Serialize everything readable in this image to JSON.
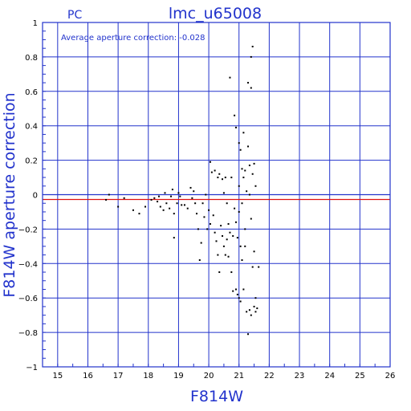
{
  "colors": {
    "frame": "#2233cc",
    "zero_line": "#2233cc",
    "mean_line": "#dd1111",
    "points": "#000000",
    "background": "#ffffff"
  },
  "chart_data": {
    "type": "scatter",
    "corner_label": "PC",
    "title": "lmc_u65008",
    "annotation": "Average aperture correction: -0.028",
    "xlabel": "F814W",
    "ylabel": "F814W aperture correction",
    "xlim": [
      14.5,
      26
    ],
    "ylim": [
      -1,
      1
    ],
    "xticks": [
      "15",
      "16",
      "17",
      "18",
      "19",
      "20",
      "21",
      "22",
      "23",
      "24",
      "25",
      "26"
    ],
    "yticks": [
      "1",
      "0.8",
      "0.6",
      "0.4",
      "0.2",
      "0",
      "−0.2",
      "−0.4",
      "−0.6",
      "−0.8",
      "−1"
    ],
    "grid": true,
    "reference_lines": [
      {
        "y": 0,
        "color": "#2233cc"
      },
      {
        "y": -0.028,
        "color": "#dd1111"
      }
    ],
    "points": [
      [
        16.6,
        -0.03
      ],
      [
        16.7,
        0.0
      ],
      [
        17.0,
        -0.07
      ],
      [
        17.2,
        -0.02
      ],
      [
        17.5,
        -0.09
      ],
      [
        17.7,
        -0.11
      ],
      [
        17.9,
        -0.07
      ],
      [
        18.1,
        -0.03
      ],
      [
        18.2,
        -0.02
      ],
      [
        18.3,
        -0.04
      ],
      [
        18.35,
        -0.01
      ],
      [
        18.4,
        -0.07
      ],
      [
        18.5,
        -0.09
      ],
      [
        18.55,
        0.01
      ],
      [
        18.6,
        -0.05
      ],
      [
        18.7,
        -0.08
      ],
      [
        18.75,
        -0.01
      ],
      [
        18.8,
        0.03
      ],
      [
        18.85,
        -0.11
      ],
      [
        18.85,
        -0.25
      ],
      [
        18.95,
        -0.05
      ],
      [
        19.0,
        0.01
      ],
      [
        19.05,
        -0.01
      ],
      [
        19.1,
        -0.06
      ],
      [
        19.2,
        -0.06
      ],
      [
        19.3,
        -0.08
      ],
      [
        19.4,
        0.04
      ],
      [
        19.45,
        -0.02
      ],
      [
        19.5,
        0.02
      ],
      [
        19.55,
        -0.05
      ],
      [
        19.6,
        -0.11
      ],
      [
        19.65,
        -0.2
      ],
      [
        19.7,
        -0.38
      ],
      [
        19.75,
        -0.28
      ],
      [
        19.8,
        -0.05
      ],
      [
        19.85,
        -0.13
      ],
      [
        19.9,
        0.0
      ],
      [
        19.95,
        -0.2
      ],
      [
        20.0,
        -0.09
      ],
      [
        20.05,
        -0.17
      ],
      [
        20.05,
        0.19
      ],
      [
        20.1,
        0.13
      ],
      [
        20.15,
        -0.12
      ],
      [
        20.2,
        -0.22
      ],
      [
        20.2,
        0.14
      ],
      [
        20.25,
        -0.27
      ],
      [
        20.3,
        -0.35
      ],
      [
        20.3,
        0.1
      ],
      [
        20.35,
        0.12
      ],
      [
        20.35,
        -0.45
      ],
      [
        20.4,
        -0.18
      ],
      [
        20.45,
        -0.24
      ],
      [
        20.45,
        0.09
      ],
      [
        20.5,
        0.01
      ],
      [
        20.5,
        -0.3
      ],
      [
        20.55,
        -0.35
      ],
      [
        20.55,
        0.1
      ],
      [
        20.6,
        -0.26
      ],
      [
        20.6,
        -0.05
      ],
      [
        20.65,
        -0.36
      ],
      [
        20.65,
        -0.17
      ],
      [
        20.7,
        0.68
      ],
      [
        20.7,
        -0.22
      ],
      [
        20.75,
        -0.45
      ],
      [
        20.75,
        0.1
      ],
      [
        20.8,
        -0.24
      ],
      [
        20.8,
        -0.56
      ],
      [
        20.85,
        0.46
      ],
      [
        20.85,
        -0.08
      ],
      [
        20.9,
        -0.55
      ],
      [
        20.9,
        -0.16
      ],
      [
        20.9,
        0.39
      ],
      [
        20.95,
        -0.25
      ],
      [
        20.95,
        -0.58
      ],
      [
        21.0,
        -0.6
      ],
      [
        21.0,
        0.3
      ],
      [
        21.0,
        -0.1
      ],
      [
        21.0,
        0.05
      ],
      [
        21.05,
        -0.3
      ],
      [
        21.05,
        0.26
      ],
      [
        21.05,
        -0.62
      ],
      [
        21.1,
        0.15
      ],
      [
        21.1,
        -0.05
      ],
      [
        21.1,
        -0.38
      ],
      [
        21.15,
        0.36
      ],
      [
        21.15,
        0.1
      ],
      [
        21.15,
        -0.55
      ],
      [
        21.2,
        0.14
      ],
      [
        21.2,
        -0.2
      ],
      [
        21.2,
        -0.3
      ],
      [
        21.25,
        0.02
      ],
      [
        21.25,
        -0.68
      ],
      [
        21.3,
        0.65
      ],
      [
        21.3,
        0.28
      ],
      [
        21.3,
        -0.81
      ],
      [
        21.35,
        0.17
      ],
      [
        21.35,
        -0.67
      ],
      [
        21.35,
        0.0
      ],
      [
        21.4,
        0.8
      ],
      [
        21.4,
        0.62
      ],
      [
        21.4,
        -0.7
      ],
      [
        21.4,
        -0.14
      ],
      [
        21.45,
        0.86
      ],
      [
        21.45,
        0.12
      ],
      [
        21.45,
        -0.42
      ],
      [
        21.5,
        -0.33
      ],
      [
        21.5,
        0.18
      ],
      [
        21.5,
        -0.65
      ],
      [
        21.55,
        -0.68
      ],
      [
        21.55,
        0.05
      ],
      [
        21.55,
        -0.6
      ],
      [
        21.6,
        -0.66
      ],
      [
        21.65,
        -0.42
      ]
    ]
  }
}
